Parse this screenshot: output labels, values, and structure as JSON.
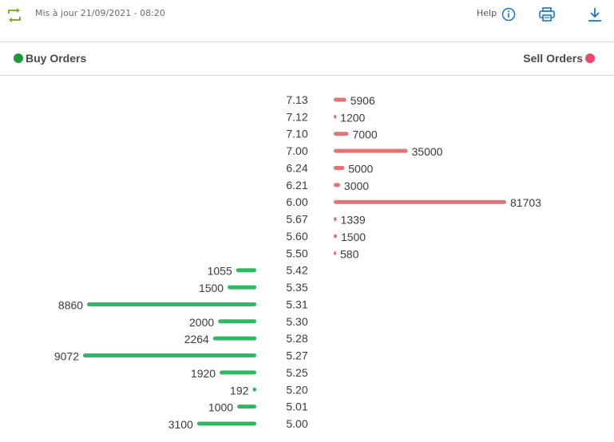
{
  "header": {
    "updated": "Mis à jour 21/09/2021 - 08:20",
    "help_label": "Help",
    "icons": [
      "refresh-icon",
      "info-icon",
      "print-icon",
      "download-icon"
    ]
  },
  "legend": {
    "buy_label": "Buy Orders",
    "sell_label": "Sell Orders"
  },
  "colors": {
    "buy": "#2fb864",
    "sell": "#e57373",
    "buy_dot": "#1a9b3d",
    "sell_dot": "#f2476a",
    "refresh": "#7ab42b",
    "accent": "#1976d2"
  },
  "chart_data": {
    "type": "bar",
    "orientation": "horizontal-diverging",
    "categories": [
      "7.13",
      "7.12",
      "7.10",
      "7.00",
      "6.24",
      "6.21",
      "6.00",
      "5.67",
      "5.60",
      "5.50",
      "5.42",
      "5.35",
      "5.31",
      "5.30",
      "5.28",
      "5.27",
      "5.25",
      "5.20",
      "5.01",
      "5.00"
    ],
    "series": [
      {
        "name": "Sell Orders",
        "side": "right",
        "values": [
          5906,
          1200,
          7000,
          35000,
          5000,
          3000,
          81703,
          1339,
          1500,
          580,
          null,
          null,
          null,
          null,
          null,
          null,
          null,
          null,
          null,
          null
        ]
      },
      {
        "name": "Buy Orders",
        "side": "left",
        "values": [
          null,
          null,
          null,
          null,
          null,
          null,
          null,
          null,
          null,
          null,
          1055,
          1500,
          8860,
          2000,
          2264,
          9072,
          1920,
          192,
          1000,
          3100
        ]
      }
    ]
  }
}
